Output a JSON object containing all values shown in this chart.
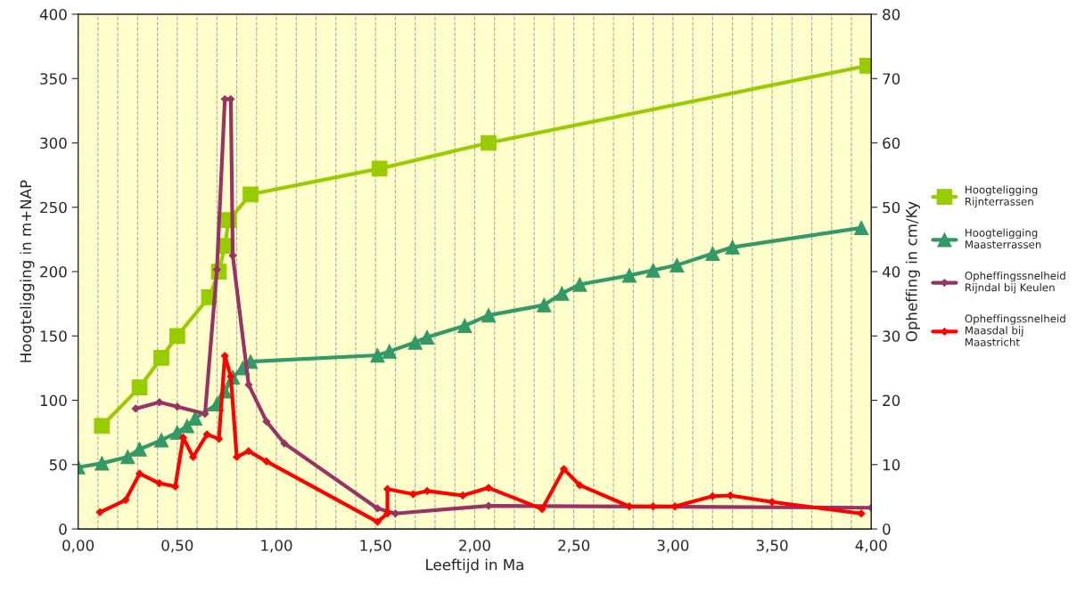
{
  "chart_data": {
    "type": "line",
    "xlabel": "Leeftijd in Ma",
    "ylabel": "Hoogteligging in m+NAP",
    "y2label": "Opheffing in cm/Ky",
    "xlim": [
      0,
      4
    ],
    "xticks": [
      {
        "value": 0,
        "label": "0,00"
      },
      {
        "value": 0.1,
        "label": null
      },
      {
        "value": 0.2,
        "label": null
      },
      {
        "value": 0.3,
        "label": null
      },
      {
        "value": 0.4,
        "label": null
      },
      {
        "value": 0.5,
        "label": "0,50"
      },
      {
        "value": 0.6,
        "label": null
      },
      {
        "value": 0.7,
        "label": null
      },
      {
        "value": 0.8,
        "label": null
      },
      {
        "value": 0.9,
        "label": null
      },
      {
        "value": 1.0,
        "label": "1,00"
      },
      {
        "value": 1.1,
        "label": null
      },
      {
        "value": 1.2,
        "label": null
      },
      {
        "value": 1.3,
        "label": null
      },
      {
        "value": 1.4,
        "label": null
      },
      {
        "value": 1.5,
        "label": "1,50"
      },
      {
        "value": 1.6,
        "label": null
      },
      {
        "value": 1.7,
        "label": null
      },
      {
        "value": 1.8,
        "label": null
      },
      {
        "value": 1.9,
        "label": null
      },
      {
        "value": 2.0,
        "label": "2,00"
      },
      {
        "value": 2.1,
        "label": null
      },
      {
        "value": 2.2,
        "label": null
      },
      {
        "value": 2.3,
        "label": null
      },
      {
        "value": 2.4,
        "label": null
      },
      {
        "value": 2.5,
        "label": "2,50"
      },
      {
        "value": 2.6,
        "label": null
      },
      {
        "value": 2.7,
        "label": null
      },
      {
        "value": 2.8,
        "label": null
      },
      {
        "value": 2.9,
        "label": null
      },
      {
        "value": 3.0,
        "label": "3,00"
      },
      {
        "value": 3.1,
        "label": null
      },
      {
        "value": 3.2,
        "label": null
      },
      {
        "value": 3.3,
        "label": null
      },
      {
        "value": 3.4,
        "label": null
      },
      {
        "value": 3.5,
        "label": "3,50"
      },
      {
        "value": 3.6,
        "label": null
      },
      {
        "value": 3.7,
        "label": null
      },
      {
        "value": 3.8,
        "label": null
      },
      {
        "value": 3.9,
        "label": null
      },
      {
        "value": 4.0,
        "label": "4,00"
      }
    ],
    "ylim": [
      0,
      400
    ],
    "yticks": [
      0,
      50,
      100,
      150,
      200,
      250,
      300,
      350,
      400
    ],
    "y2lim": [
      0,
      80
    ],
    "y2ticks": [
      0,
      10,
      20,
      30,
      40,
      50,
      60,
      70,
      80
    ],
    "grid": "x",
    "legend": "right",
    "series": [
      {
        "name": "Hoogteligging\nRijnterrassen",
        "color": "#99cc00",
        "marker": "square",
        "x": [
          0.12,
          0.31,
          0.42,
          0.5,
          0.66,
          0.71,
          0.74,
          0.76,
          0.87,
          1.52,
          2.07,
          3.98
        ],
        "values": [
          80,
          110,
          133,
          150,
          180,
          200,
          220,
          240,
          260,
          280,
          300,
          360
        ]
      },
      {
        "name": "Hoogteligging\nMaasterrassen",
        "color": "#339966",
        "marker": "triangle",
        "x": [
          0,
          0.12,
          0.25,
          0.31,
          0.42,
          0.5,
          0.55,
          0.59,
          0.7,
          0.74,
          0.78,
          0.83,
          0.87,
          1.51,
          1.57,
          1.7,
          1.76,
          1.95,
          2.07,
          2.35,
          2.44,
          2.53,
          2.78,
          2.9,
          3.02,
          3.2,
          3.3,
          3.95
        ],
        "values": [
          48,
          51,
          56,
          62,
          69,
          75,
          80,
          86,
          97,
          107,
          118,
          125,
          130,
          135,
          138,
          145,
          149,
          158,
          166,
          174,
          183,
          190,
          197,
          201,
          205,
          214,
          219,
          234
        ]
      },
      {
        "name": "Opheffingssnelheid\nRijndal bij Keulen",
        "color": "#993366",
        "marker": "diamond",
        "axis": "y2",
        "x": [
          0.29,
          0.41,
          0.5,
          0.64,
          0.7,
          0.74,
          0.77,
          0.78,
          0.86,
          0.95,
          1.04,
          1.51,
          1.6,
          2.07,
          4.0
        ],
        "values": [
          18.7,
          19.7,
          19.0,
          17.9,
          40.3,
          66.8,
          66.8,
          42.5,
          22.4,
          16.7,
          13.3,
          3.2,
          2.4,
          3.6,
          3.3
        ]
      },
      {
        "name": "Opheffingssnelheid\nMaasdal bij\nMaastricht",
        "color": "#ff0000",
        "marker": "diamond",
        "axis": "y2",
        "x": [
          0.11,
          0.24,
          0.31,
          0.41,
          0.49,
          0.53,
          0.58,
          0.65,
          0.71,
          0.74,
          0.77,
          0.8,
          0.86,
          0.95,
          1.51,
          1.56,
          1.56,
          1.69,
          1.76,
          1.94,
          2.07,
          2.34,
          2.45,
          2.53,
          2.78,
          2.9,
          3.01,
          3.2,
          3.29,
          3.5,
          3.95
        ],
        "values": [
          2.6,
          4.5,
          8.6,
          7.1,
          6.6,
          14.2,
          11.2,
          14.7,
          14.0,
          26.9,
          23.7,
          11.2,
          12.1,
          10.5,
          1.1,
          2.4,
          6.2,
          5.4,
          5.9,
          5.2,
          6.4,
          3.1,
          9.3,
          6.8,
          3.5,
          3.5,
          3.5,
          5.1,
          5.2,
          4.2,
          2.4
        ]
      }
    ]
  }
}
